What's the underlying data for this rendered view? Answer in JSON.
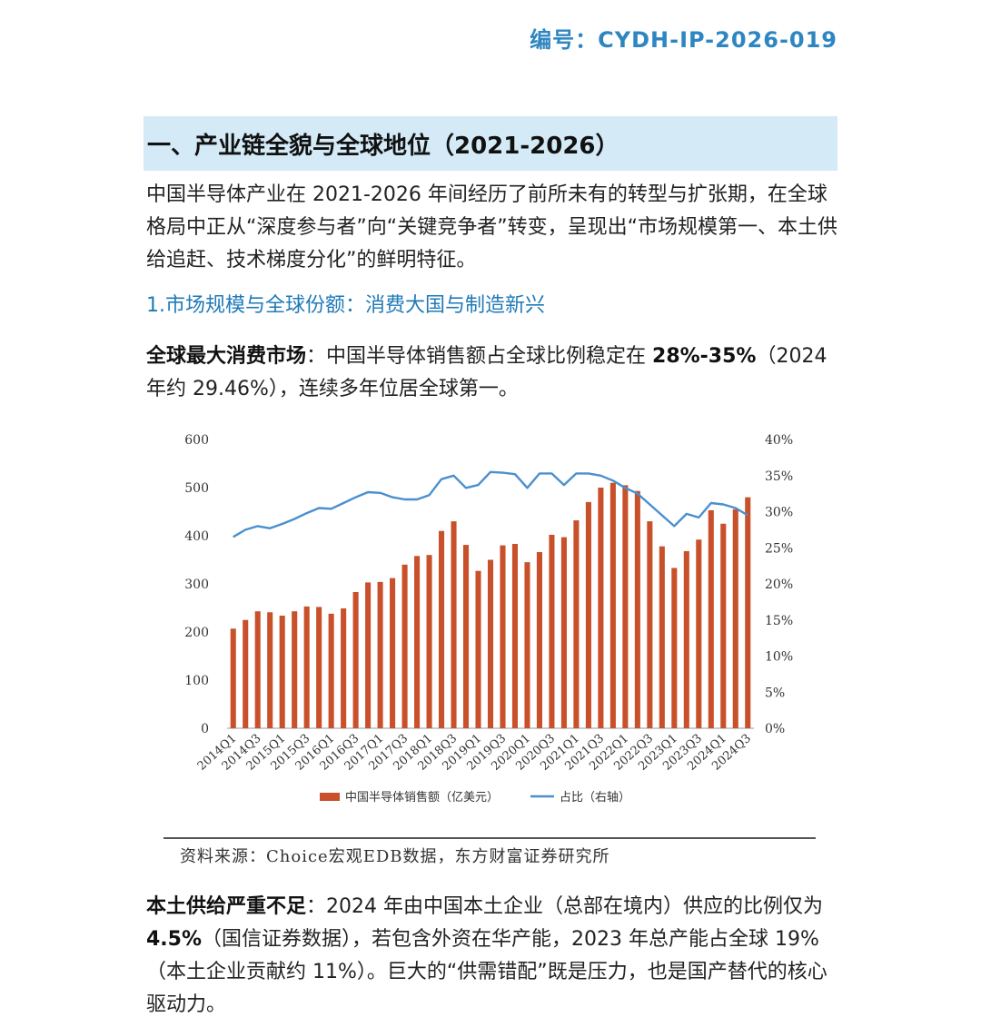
{
  "doc_number": "编号：CYDH-IP-2026-019",
  "section_title": "一、产业链全貌与全球地位（2021-2026）",
  "intro": "中国半导体产业在 2021-2026 年间经历了前所未有的转型与扩张期，在全球格局中正从“深度参与者”向“关键竞争者”转变，呈现出“市场规模第一、本土供给追赶、技术梯度分化”的鲜明特征。",
  "subsection_title": "1.市场规模与全球份额：消费大国与制造新兴",
  "consumer_para": {
    "lead": "全球最大消费市场",
    "text_before": "：中国半导体销售额占全球比例稳定在 ",
    "highlight": "28%-35%",
    "text_after": "（2024 年约 29.46%），连续多年位居全球第一。"
  },
  "supply_para": {
    "lead": "本土供给严重不足",
    "text_before": "：2024 年由中国本土企业（总部在境内）供应的比例仅为 ",
    "highlight": "4.5%",
    "text_after": "（国信证券数据），若包含外资在华产能，2023 年总产能占全球 19%（本土企业贡献约 11%）。巨大的“供需错配”既是压力，也是国产替代的核心驱动力。"
  },
  "source": "资料来源：Choice宏观EDB数据，东方财富证券研究所",
  "colors": {
    "bar": "#c8502a",
    "line": "#4a8fcf",
    "accent": "#2e86c1",
    "heading_bg": "#d4eaf7"
  },
  "chart_data": {
    "type": "bar+line",
    "categories": [
      "2014Q1",
      "2014Q2",
      "2014Q3",
      "2014Q4",
      "2015Q1",
      "2015Q2",
      "2015Q3",
      "2015Q4",
      "2016Q1",
      "2016Q2",
      "2016Q3",
      "2016Q4",
      "2017Q1",
      "2017Q2",
      "2017Q3",
      "2017Q4",
      "2018Q1",
      "2018Q2",
      "2018Q3",
      "2018Q4",
      "2019Q1",
      "2019Q2",
      "2019Q3",
      "2019Q4",
      "2020Q1",
      "2020Q2",
      "2020Q3",
      "2020Q4",
      "2021Q1",
      "2021Q2",
      "2021Q3",
      "2021Q4",
      "2022Q1",
      "2022Q2",
      "2022Q3",
      "2022Q4",
      "2023Q1",
      "2023Q2",
      "2023Q3",
      "2023Q4",
      "2024Q1",
      "2024Q2",
      "2024Q3"
    ],
    "tick_labels": [
      "2014Q1",
      "2014Q3",
      "2015Q1",
      "2015Q3",
      "2016Q1",
      "2016Q3",
      "2017Q1",
      "2017Q3",
      "2018Q1",
      "2018Q3",
      "2019Q1",
      "2019Q3",
      "2020Q1",
      "2020Q3",
      "2021Q1",
      "2021Q3",
      "2022Q1",
      "2022Q3",
      "2023Q1",
      "2023Q3",
      "2024Q1",
      "2024Q3"
    ],
    "series": [
      {
        "name": "中国半导体销售额（亿美元）",
        "axis": "left",
        "kind": "bar",
        "values": [
          207,
          225,
          243,
          241,
          234,
          243,
          253,
          252,
          238,
          249,
          283,
          303,
          304,
          312,
          340,
          358,
          360,
          410,
          430,
          381,
          327,
          350,
          380,
          383,
          345,
          366,
          402,
          397,
          432,
          470,
          500,
          510,
          505,
          493,
          430,
          378,
          333,
          368,
          392,
          453,
          425,
          455,
          480
        ]
      },
      {
        "name": "占比（右轴）",
        "axis": "right",
        "kind": "line",
        "values": [
          26.5,
          27.5,
          28.0,
          27.7,
          28.3,
          29.0,
          29.8,
          30.5,
          30.4,
          31.2,
          32.0,
          32.7,
          32.6,
          32.0,
          31.7,
          31.7,
          32.3,
          34.5,
          35.0,
          33.3,
          33.7,
          35.5,
          35.4,
          35.2,
          33.3,
          35.3,
          35.3,
          33.7,
          35.3,
          35.3,
          35.0,
          34.3,
          33.3,
          32.5,
          31.0,
          29.5,
          28.0,
          29.7,
          29.2,
          31.2,
          31.0,
          30.5,
          29.5
        ]
      }
    ],
    "y_left": {
      "min": 0,
      "max": 600,
      "ticks": [
        "0",
        "100",
        "200",
        "300",
        "400",
        "500",
        "600"
      ]
    },
    "y_right": {
      "min": 0,
      "max": 40,
      "ticks": [
        "0%",
        "5%",
        "10%",
        "15%",
        "20%",
        "25%",
        "30%",
        "35%",
        "40%"
      ]
    },
    "legend": [
      "中国半导体销售额（亿美元）",
      "占比（右轴）"
    ]
  }
}
